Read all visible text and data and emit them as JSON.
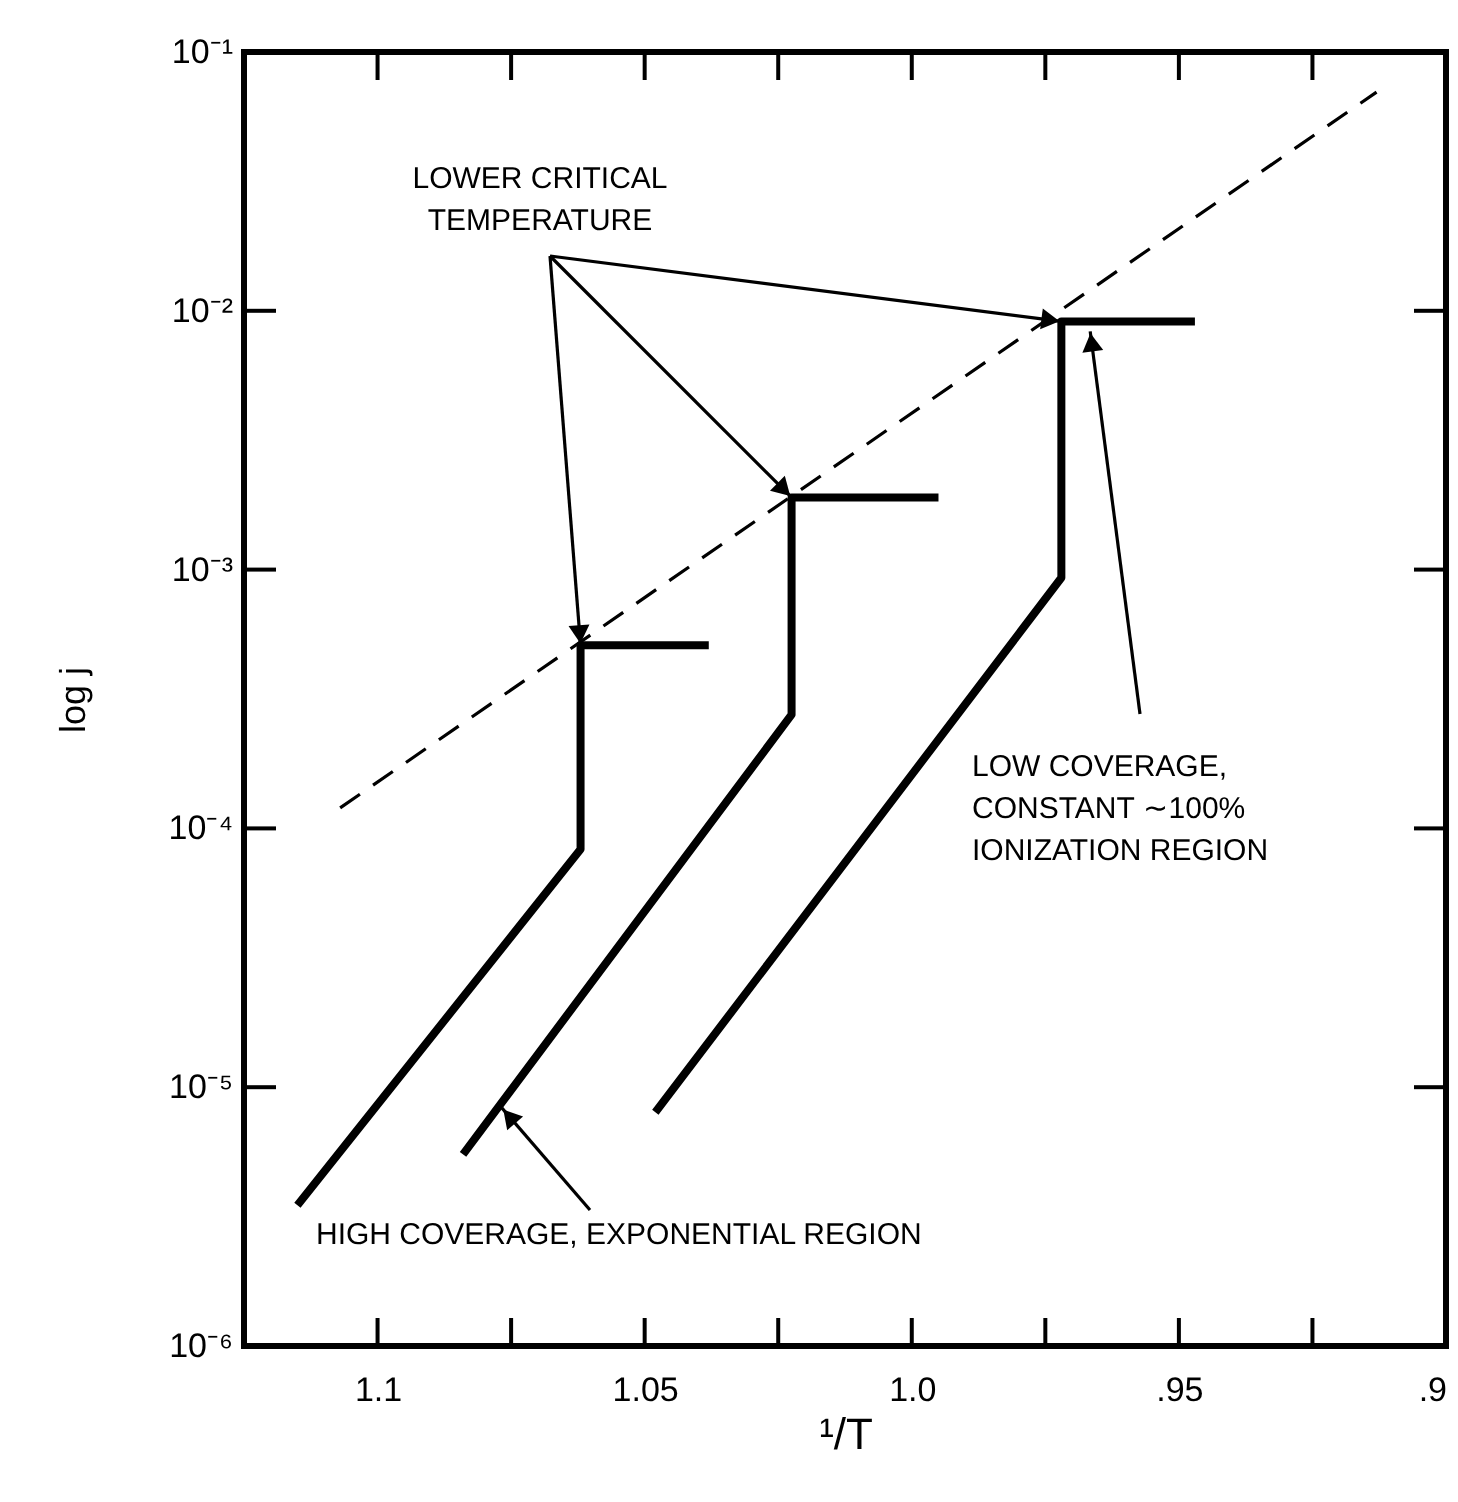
{
  "chart_data": {
    "type": "line",
    "xlabel": "¹/T",
    "ylabel": "log j",
    "xlim": [
      1.125,
      0.9
    ],
    "ylim": [
      1e-06,
      0.1
    ],
    "log": "y",
    "grid": false,
    "marker": "none",
    "xticks": [
      {
        "value": 1.1,
        "label": "1.1"
      },
      {
        "value": 1.075,
        "label": null
      },
      {
        "value": 1.05,
        "label": "1.05"
      },
      {
        "value": 1.025,
        "label": null
      },
      {
        "value": 1.0,
        "label": "1.0"
      },
      {
        "value": 0.975,
        "label": null
      },
      {
        "value": 0.95,
        "label": ".95"
      },
      {
        "value": 0.925,
        "label": null
      },
      {
        "value": 0.9,
        "label": ".9"
      }
    ],
    "yticks": [
      {
        "value": 1e-06,
        "label": "10⁻⁶"
      },
      {
        "value": 1e-05,
        "label": "10⁻⁵"
      },
      {
        "value": 0.0001,
        "label": "10⁻⁴"
      },
      {
        "value": 0.001,
        "label": "10⁻³"
      },
      {
        "value": 0.01,
        "label": "10⁻²"
      },
      {
        "value": 0.1,
        "label": "10⁻¹"
      }
    ],
    "series": [
      {
        "color": "#000000",
        "line_style": "solid",
        "x": [
          1.115,
          1.062,
          1.062,
          1.038
        ],
        "values": [
          3.5e-06,
          8.3e-05,
          0.00051,
          0.00051
        ]
      },
      {
        "color": "#000000",
        "line_style": "solid",
        "x": [
          1.084,
          1.0225,
          1.0225,
          0.995
        ],
        "values": [
          5.5e-06,
          0.000275,
          0.0019,
          0.0019
        ]
      },
      {
        "color": "#000000",
        "line_style": "solid",
        "x": [
          1.048,
          0.972,
          0.972,
          0.947
        ],
        "values": [
          8e-06,
          0.00093,
          0.0091,
          0.0091
        ]
      },
      {
        "color": "#000000",
        "line_style": "dashed",
        "x": [
          1.107,
          0.913
        ],
        "values": [
          0.00012,
          0.07
        ]
      }
    ],
    "annotations": [
      {
        "text": "LOWER CRITICAL\nTEMPERATURE",
        "x": 1.062,
        "y": 0.00051
      },
      {
        "text": "HIGH COVERAGE, EXPONENTIAL REGION",
        "x": 1.0767,
        "y": 8.3e-06
      },
      {
        "text": "LOW COVERAGE,\nCONSTANT ∼100%\nIONIZATION REGION",
        "x": 0.9666,
        "y": 0.0091
      }
    ]
  }
}
